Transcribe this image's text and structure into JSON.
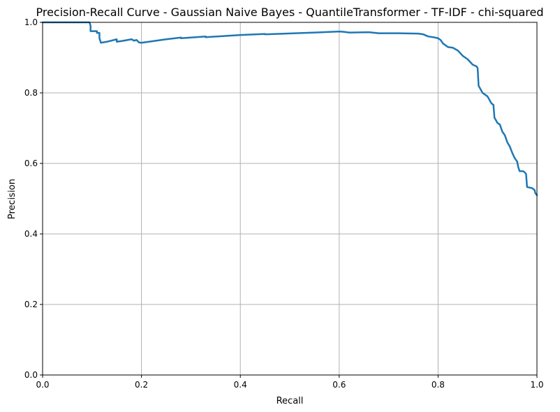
{
  "chart_data": {
    "type": "line",
    "title": "Precision-Recall Curve - Gaussian Naive Bayes - QuantileTransformer - TF-IDF - chi-squared",
    "xlabel": "Recall",
    "ylabel": "Precision",
    "xlim": [
      0,
      1
    ],
    "ylim": [
      0,
      1
    ],
    "grid": true,
    "x_ticks": [
      0,
      0.2,
      0.4,
      0.6,
      0.8,
      1
    ],
    "x_tick_labels": [
      "0.0",
      "0.2",
      "0.4",
      "0.6",
      "0.8",
      "1.0"
    ],
    "y_ticks": [
      0,
      0.2,
      0.4,
      0.6,
      0.8,
      1
    ],
    "y_tick_labels": [
      "0.0",
      "0.2",
      "0.4",
      "0.6",
      "0.8",
      "1.0"
    ],
    "series": [
      {
        "color": "#1f77b4",
        "points": [
          [
            0.0,
            1.0
          ],
          [
            0.095,
            1.0
          ],
          [
            0.097,
            0.99
          ],
          [
            0.097,
            0.975
          ],
          [
            0.11,
            0.975
          ],
          [
            0.11,
            0.97
          ],
          [
            0.115,
            0.97
          ],
          [
            0.115,
            0.955
          ],
          [
            0.118,
            0.942
          ],
          [
            0.13,
            0.945
          ],
          [
            0.15,
            0.952
          ],
          [
            0.15,
            0.945
          ],
          [
            0.16,
            0.947
          ],
          [
            0.18,
            0.952
          ],
          [
            0.185,
            0.948
          ],
          [
            0.19,
            0.95
          ],
          [
            0.195,
            0.943
          ],
          [
            0.2,
            0.942
          ],
          [
            0.25,
            0.952
          ],
          [
            0.28,
            0.957
          ],
          [
            0.28,
            0.955
          ],
          [
            0.33,
            0.96
          ],
          [
            0.33,
            0.958
          ],
          [
            0.4,
            0.964
          ],
          [
            0.45,
            0.967
          ],
          [
            0.45,
            0.966
          ],
          [
            0.55,
            0.971
          ],
          [
            0.6,
            0.974
          ],
          [
            0.61,
            0.973
          ],
          [
            0.62,
            0.971
          ],
          [
            0.66,
            0.972
          ],
          [
            0.68,
            0.969
          ],
          [
            0.72,
            0.969
          ],
          [
            0.76,
            0.968
          ],
          [
            0.77,
            0.966
          ],
          [
            0.78,
            0.96
          ],
          [
            0.79,
            0.958
          ],
          [
            0.8,
            0.955
          ],
          [
            0.805,
            0.95
          ],
          [
            0.81,
            0.94
          ],
          [
            0.82,
            0.93
          ],
          [
            0.83,
            0.928
          ],
          [
            0.84,
            0.92
          ],
          [
            0.85,
            0.905
          ],
          [
            0.86,
            0.895
          ],
          [
            0.87,
            0.88
          ],
          [
            0.878,
            0.875
          ],
          [
            0.88,
            0.87
          ],
          [
            0.882,
            0.82
          ],
          [
            0.89,
            0.8
          ],
          [
            0.9,
            0.79
          ],
          [
            0.908,
            0.77
          ],
          [
            0.912,
            0.766
          ],
          [
            0.914,
            0.73
          ],
          [
            0.92,
            0.715
          ],
          [
            0.925,
            0.71
          ],
          [
            0.93,
            0.69
          ],
          [
            0.935,
            0.68
          ],
          [
            0.94,
            0.66
          ],
          [
            0.945,
            0.648
          ],
          [
            0.95,
            0.63
          ],
          [
            0.955,
            0.615
          ],
          [
            0.96,
            0.605
          ],
          [
            0.962,
            0.59
          ],
          [
            0.965,
            0.578
          ],
          [
            0.972,
            0.578
          ],
          [
            0.975,
            0.575
          ],
          [
            0.978,
            0.57
          ],
          [
            0.98,
            0.533
          ],
          [
            0.99,
            0.53
          ],
          [
            0.995,
            0.525
          ],
          [
            0.997,
            0.515
          ],
          [
            1.0,
            0.51
          ]
        ]
      }
    ]
  }
}
